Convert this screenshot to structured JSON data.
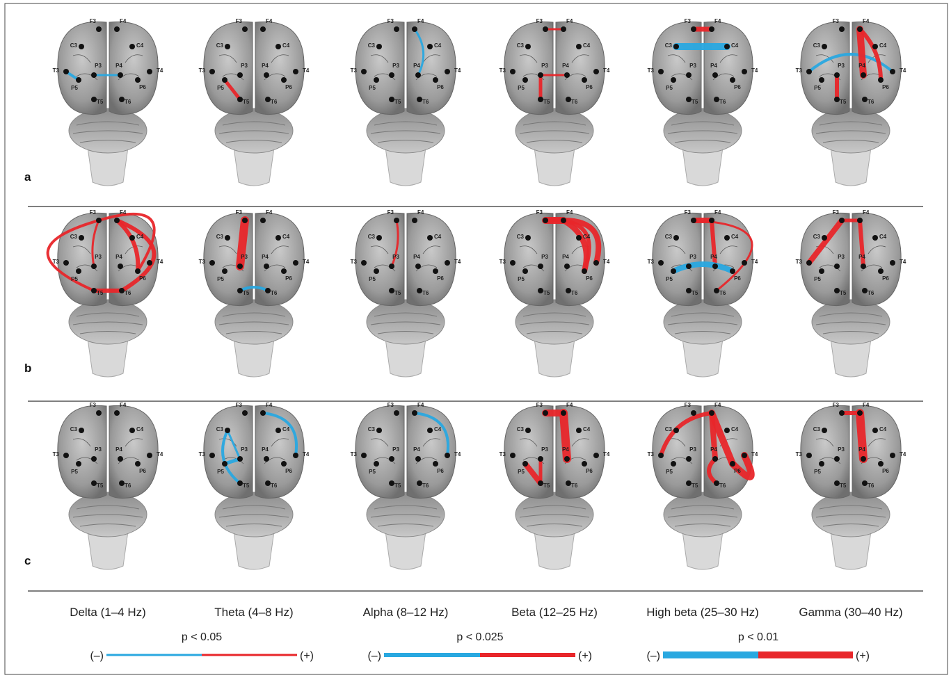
{
  "electrodes": [
    "F3",
    "F4",
    "C3",
    "C4",
    "T3",
    "T4",
    "P3",
    "P4",
    "P5",
    "P6",
    "T5",
    "T6"
  ],
  "panels": [
    {
      "label": "a"
    },
    {
      "label": "b"
    },
    {
      "label": "c"
    }
  ],
  "bands": [
    "Delta (1–4 Hz)",
    "Theta (4–8 Hz)",
    "Alpha (8–12 Hz)",
    "Beta (12–25 Hz)",
    "High beta (25–30 Hz)",
    "Gamma (30–40 Hz)"
  ],
  "legend": [
    {
      "p": "p < 0.05",
      "neg": "(–)",
      "pos": "(+)"
    },
    {
      "p": "p < 0.025",
      "neg": "(–)",
      "pos": "(+)"
    },
    {
      "p": "p < 0.01",
      "neg": "(–)",
      "pos": "(+)"
    }
  ]
}
